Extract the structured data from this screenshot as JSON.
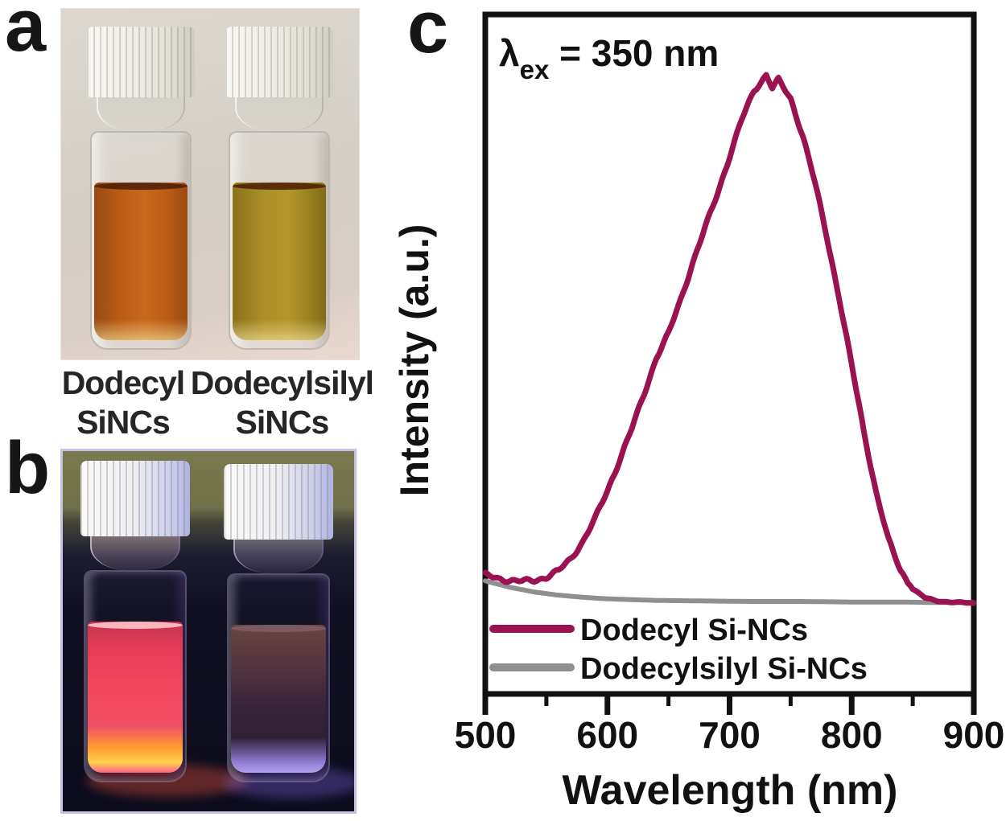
{
  "figure": {
    "panel_a": {
      "letter": "a",
      "caption": {
        "col1_line1": "Dodecyl",
        "col1_line2": "SiNCs",
        "col2_line1": "Dodecylsilyl",
        "col2_line2": "SiNCs"
      }
    },
    "panel_b": {
      "letter": "b"
    },
    "panel_c": {
      "letter": "c"
    }
  },
  "chart_data": {
    "type": "line",
    "annotation": {
      "lambda": "λ",
      "subscript": "ex",
      "text": " = 350 nm"
    },
    "xlabel": "Wavelength (nm)",
    "ylabel": "Intensity (a.u.)",
    "xlim": [
      500,
      900
    ],
    "ylim": [
      0,
      1.05
    ],
    "grid": false,
    "legend_position": "inside bottom-left",
    "x_ticks_major": [
      500,
      600,
      700,
      800,
      900
    ],
    "x_ticks_minor": [
      550,
      650,
      750,
      850
    ],
    "x_tick_labels": [
      "500",
      "600",
      "700",
      "800",
      "900"
    ],
    "series": [
      {
        "name": "Dodecyl Si-NCs",
        "color": "#9b1250",
        "peak_nm": 730,
        "x": [
          500,
          510,
          520,
          530,
          540,
          550,
          560,
          570,
          580,
          590,
          600,
          610,
          620,
          630,
          640,
          650,
          660,
          670,
          680,
          690,
          700,
          710,
          720,
          730,
          735,
          740,
          750,
          760,
          770,
          780,
          790,
          800,
          810,
          820,
          830,
          840,
          850,
          860,
          870,
          880,
          890,
          900
        ],
        "y": [
          0.053,
          0.047,
          0.043,
          0.041,
          0.043,
          0.049,
          0.061,
          0.084,
          0.117,
          0.16,
          0.213,
          0.271,
          0.33,
          0.396,
          0.464,
          0.51,
          0.575,
          0.645,
          0.71,
          0.775,
          0.845,
          0.915,
          0.97,
          1.0,
          0.975,
          0.99,
          0.955,
          0.885,
          0.795,
          0.69,
          0.575,
          0.45,
          0.325,
          0.21,
          0.12,
          0.062,
          0.027,
          0.01,
          0.004,
          0.002,
          0.001,
          0.0
        ]
      },
      {
        "name": "Dodecylsilyl Si-NCs",
        "color": "#8f8f8f",
        "x": [
          500,
          520,
          540,
          560,
          580,
          600,
          640,
          680,
          720,
          760,
          800,
          840,
          870,
          900
        ],
        "y": [
          0.042,
          0.03,
          0.021,
          0.015,
          0.011,
          0.008,
          0.005,
          0.004,
          0.003,
          0.003,
          0.002,
          0.002,
          0.001,
          0.001
        ]
      }
    ]
  },
  "colors": {
    "curve_dodecyl": "#9b1250",
    "curve_dodecylsilyl": "#8f8f8f",
    "axis": "#111111",
    "vial_a_left_liquid": "#c06018",
    "vial_a_right_liquid": "#a88c22",
    "vial_b_left_glow": "#f1475f",
    "vial_b_right_glow": "#8f7cd0"
  }
}
